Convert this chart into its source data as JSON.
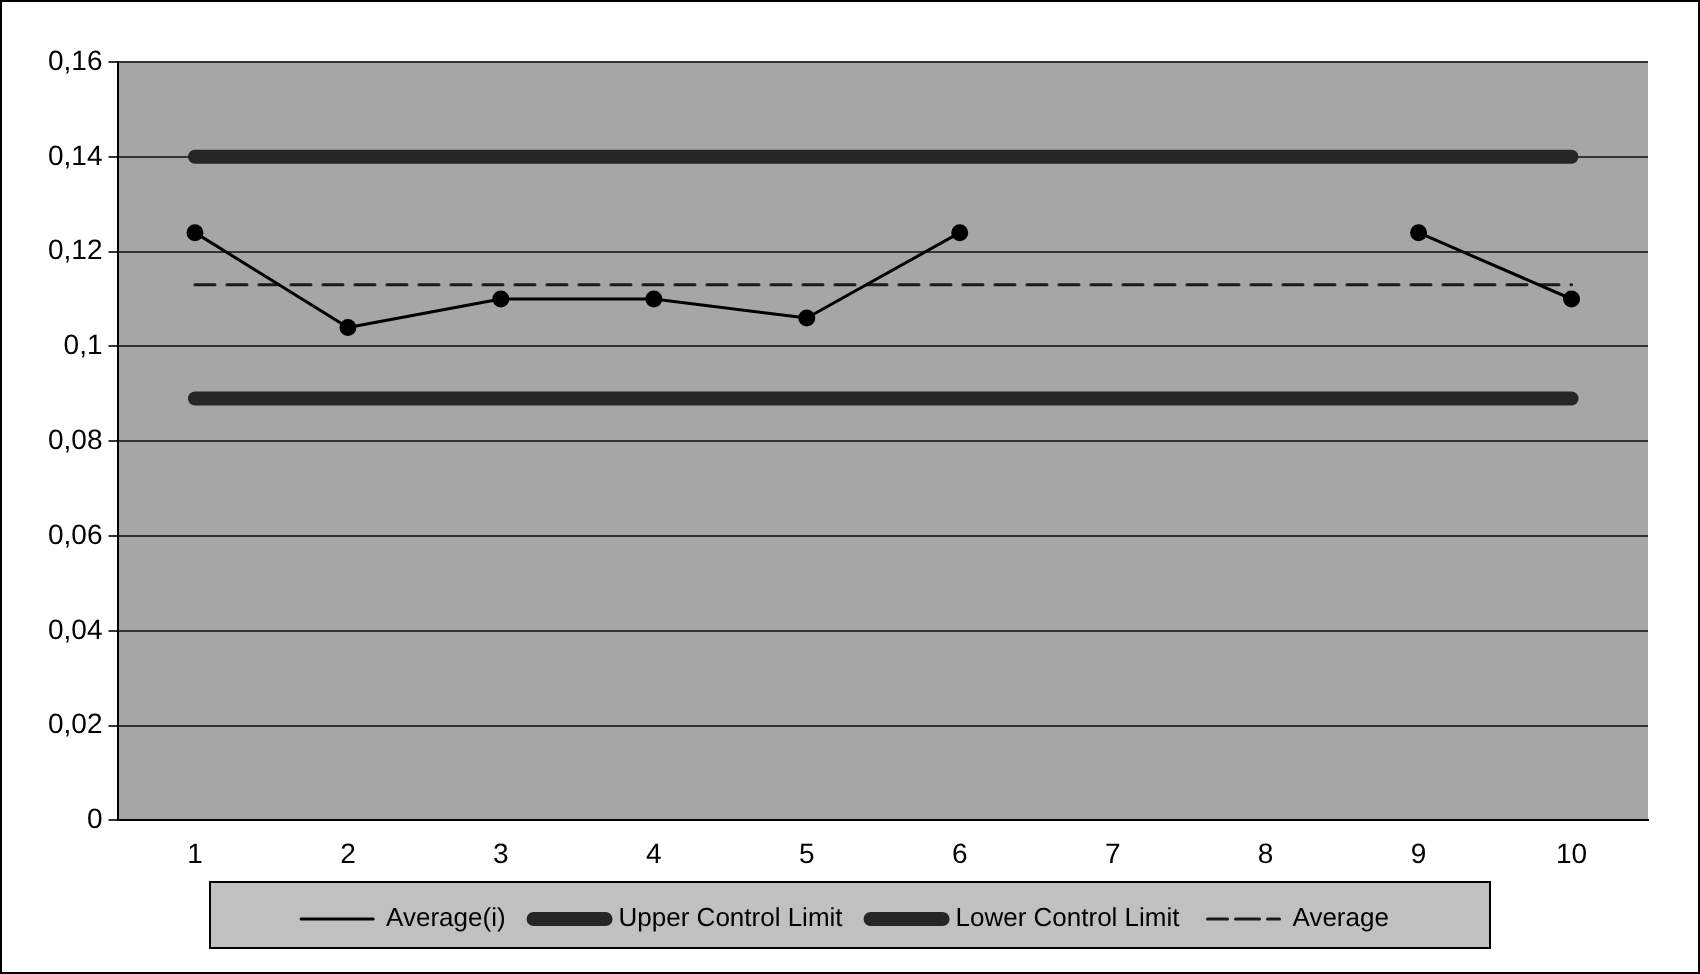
{
  "chart_data": {
    "type": "line",
    "categories": [
      "1",
      "2",
      "3",
      "4",
      "5",
      "6",
      "7",
      "8",
      "9",
      "10"
    ],
    "series": [
      {
        "name": "Average(i)",
        "color": "#000000",
        "marker": "circle",
        "line_style": "solid",
        "values": [
          0.124,
          0.104,
          0.11,
          0.11,
          0.106,
          0.124,
          null,
          null,
          0.124,
          0.11
        ]
      },
      {
        "name": "Upper Control Limit",
        "color": "#262626",
        "marker": "none",
        "line_style": "solid",
        "values": [
          0.14,
          0.14,
          0.14,
          0.14,
          0.14,
          0.14,
          0.14,
          0.14,
          0.14,
          0.14
        ]
      },
      {
        "name": "Lower Control Limit",
        "color": "#262626",
        "marker": "none",
        "line_style": "solid",
        "values": [
          0.089,
          0.089,
          0.089,
          0.089,
          0.089,
          0.089,
          0.089,
          0.089,
          0.089,
          0.089
        ]
      },
      {
        "name": "Average",
        "color": "#1a1a1a",
        "marker": "none",
        "line_style": "dashed",
        "values": [
          0.113,
          0.113,
          0.113,
          0.113,
          0.113,
          0.113,
          0.113,
          0.113,
          0.113,
          0.113
        ]
      }
    ],
    "ylim": [
      0,
      0.16
    ],
    "yticks": [
      0,
      {
        "value": 0.02,
        "label": "0,02"
      },
      {
        "value": 0.04,
        "label": "0,04"
      },
      {
        "value": 0.06,
        "label": "0,06"
      },
      {
        "value": 0.08,
        "label": "0,08"
      },
      {
        "value": 0.1,
        "label": "0,1"
      },
      {
        "value": 0.12,
        "label": "0,12"
      },
      {
        "value": 0.14,
        "label": "0,14"
      },
      {
        "value": 0.16,
        "label": "0,16"
      }
    ],
    "grid": "y",
    "legend": "bottom"
  }
}
